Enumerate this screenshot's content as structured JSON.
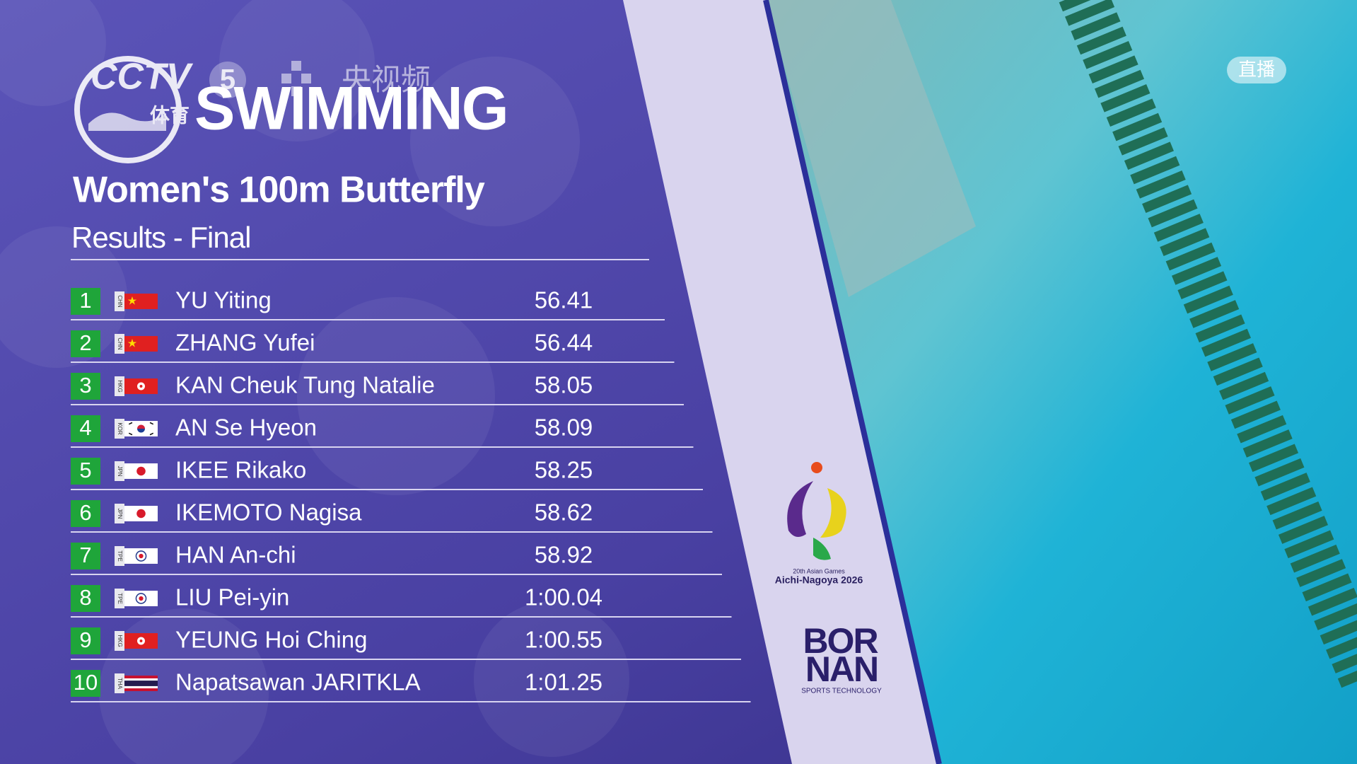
{
  "logo": {
    "channel": "CCTV",
    "number": "5",
    "sport": "体育",
    "app": "央视频"
  },
  "live_badge": "直播",
  "header": {
    "sport": "SWIMMING",
    "event": "Women's 100m Butterfly",
    "phase": "Results - Final"
  },
  "results": [
    {
      "rank": 1,
      "noc": "CHN",
      "name": "YU Yiting",
      "time": "56.41"
    },
    {
      "rank": 2,
      "noc": "CHN",
      "name": "ZHANG Yufei",
      "time": "56.44"
    },
    {
      "rank": 3,
      "noc": "HKG",
      "name": "KAN Cheuk Tung Natalie",
      "time": "58.05"
    },
    {
      "rank": 4,
      "noc": "KOR",
      "name": "AN Se Hyeon",
      "time": "58.09"
    },
    {
      "rank": 5,
      "noc": "JPN",
      "name": "IKEE Rikako",
      "time": "58.25"
    },
    {
      "rank": 6,
      "noc": "JPN",
      "name": "IKEMOTO Nagisa",
      "time": "58.62"
    },
    {
      "rank": 7,
      "noc": "TPE",
      "name": "HAN An-chi",
      "time": "58.92"
    },
    {
      "rank": 8,
      "noc": "TPE",
      "name": "LIU Pei-yin",
      "time": "1:00.04"
    },
    {
      "rank": 9,
      "noc": "HKG",
      "name": "YEUNG Hoi Ching",
      "time": "1:00.55"
    },
    {
      "rank": 10,
      "noc": "THA",
      "name": "Napatsawan JARITKLA",
      "time": "1:01.25"
    }
  ],
  "sponsor_logos": {
    "games": {
      "edition": "20th Asian Games",
      "host": "Aichi-Nagoya 2026"
    },
    "bornan": {
      "name_top": "BOR",
      "name_bottom": "NAN",
      "tagline": "SPORTS TECHNOLOGY"
    }
  }
}
